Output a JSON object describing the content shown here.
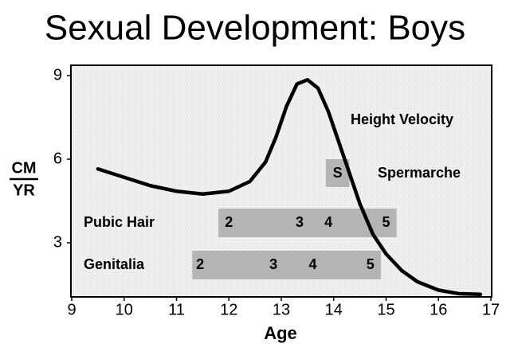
{
  "chart_data": {
    "type": "line",
    "title": "Sexual Development: Boys",
    "xlabel": "Age",
    "ylabel": [
      "CM",
      "YR"
    ],
    "xlim": [
      9,
      17
    ],
    "ylim": [
      1,
      9.4
    ],
    "xticks": [
      9,
      10,
      11,
      12,
      13,
      14,
      15,
      16,
      17
    ],
    "yticks": [
      3,
      6,
      9
    ],
    "grid": false,
    "series": [
      {
        "name": "Height Velocity",
        "color": "#000000",
        "x": [
          9.5,
          10,
          10.5,
          11,
          11.5,
          12,
          12.4,
          12.7,
          12.9,
          13.1,
          13.3,
          13.5,
          13.7,
          13.9,
          14.1,
          14.3,
          14.5,
          14.75,
          15,
          15.3,
          15.6,
          16,
          16.4,
          16.8
        ],
        "values": [
          5.65,
          5.35,
          5.05,
          4.85,
          4.75,
          4.85,
          5.2,
          5.9,
          6.8,
          7.9,
          8.7,
          8.85,
          8.55,
          7.7,
          6.6,
          5.5,
          4.4,
          3.3,
          2.6,
          2.0,
          1.6,
          1.3,
          1.17,
          1.15
        ]
      }
    ],
    "spermarche": {
      "name": "Spermarche",
      "label": "S",
      "start": 13.85,
      "end": 14.3
    },
    "bands": [
      {
        "name": "Pubic Hair",
        "start": 11.8,
        "end": 15.2,
        "stages": [
          "2",
          "3",
          "4",
          "5"
        ],
        "stage_ages": [
          12,
          13.35,
          13.9,
          15
        ]
      },
      {
        "name": "Genitalia",
        "start": 11.3,
        "end": 14.9,
        "stages": [
          "2",
          "3",
          "4",
          "5"
        ],
        "stage_ages": [
          11.45,
          12.85,
          13.6,
          14.7
        ]
      }
    ]
  }
}
